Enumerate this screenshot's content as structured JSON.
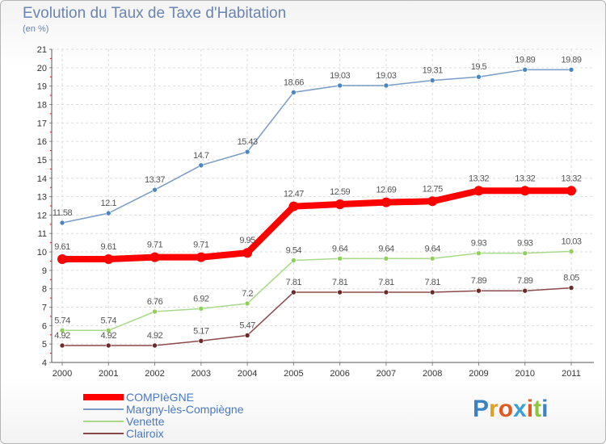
{
  "chart_data": {
    "type": "line",
    "title": "Evolution du Taux de Taxe d'Habitation",
    "subtitle": "(en %)",
    "xlabel": "",
    "ylabel": "",
    "ylim": [
      4,
      21
    ],
    "yticks": [
      4,
      5,
      6,
      7,
      8,
      9,
      10,
      11,
      12,
      13,
      14,
      15,
      16,
      17,
      18,
      19,
      20,
      21
    ],
    "categories": [
      "2000",
      "2001",
      "2002",
      "2003",
      "2004",
      "2005",
      "2006",
      "2007",
      "2008",
      "2009",
      "2010",
      "2011"
    ],
    "series": [
      {
        "name": "Margny-lès-Compiègne",
        "color": "#7a9cc6",
        "marker": "#4a86c1",
        "width": 1.5,
        "r": 3,
        "values": [
          11.58,
          12.1,
          13.37,
          14.7,
          15.43,
          18.66,
          19.03,
          19.03,
          19.31,
          19.5,
          19.89,
          19.89
        ],
        "labels": [
          "11.58",
          "12.1",
          "13.37",
          "14.7",
          "15.43",
          "18.66",
          "19.03",
          "19.03",
          "19.31",
          "19.5",
          "19.89",
          "19.89"
        ]
      },
      {
        "name": "COMPIèGNE",
        "color": "#ff0000",
        "marker": "#ff0000",
        "width": 8,
        "r": 6,
        "values": [
          9.61,
          9.61,
          9.71,
          9.71,
          9.95,
          12.47,
          12.59,
          12.69,
          12.75,
          13.32,
          13.32,
          13.32
        ],
        "labels": [
          "9.61",
          "9.61",
          "9.71",
          "9.71",
          "9.95",
          "12.47",
          "12.59",
          "12.69",
          "12.75",
          "13.32",
          "13.32",
          "13.32"
        ]
      },
      {
        "name": "Venette",
        "color": "#a9d98a",
        "marker": "#8fcf5a",
        "width": 1.5,
        "r": 3,
        "values": [
          5.74,
          5.74,
          6.76,
          6.92,
          7.2,
          9.54,
          9.64,
          9.64,
          9.64,
          9.93,
          9.93,
          10.03
        ],
        "labels": [
          "5.74",
          "5.74",
          "6.76",
          "6.92",
          "7.2",
          "9.54",
          "9.64",
          "9.64",
          "9.64",
          "9.93",
          "9.93",
          "10.03"
        ]
      },
      {
        "name": "Clairoix",
        "color": "#8a4a4a",
        "marker": "#6b2a2a",
        "width": 1.5,
        "r": 3,
        "values": [
          4.92,
          4.92,
          4.92,
          5.17,
          5.47,
          7.81,
          7.81,
          7.81,
          7.81,
          7.89,
          7.89,
          8.05
        ],
        "labels": [
          "4.92",
          "4.92",
          "4.92",
          "5.17",
          "5.47",
          "7.81",
          "7.81",
          "7.81",
          "7.81",
          "7.89",
          "7.89",
          "8.05"
        ]
      }
    ],
    "legend": {
      "placement": "bottom-left",
      "entries": [
        {
          "name": "COMPIèGNE",
          "color": "#ff0000",
          "text_color": "#4a78c4",
          "width": 8
        },
        {
          "name": "Margny-lès-Compiègne",
          "color": "#7a9cc6",
          "text_color": "#4a78c4",
          "width": 2
        },
        {
          "name": "Venette",
          "color": "#a9d98a",
          "text_color": "#4a78c4",
          "width": 2
        },
        {
          "name": "Clairoix",
          "color": "#8a4a4a",
          "text_color": "#4a78c4",
          "width": 2
        }
      ]
    }
  },
  "brand": {
    "letters": [
      {
        "ch": "P",
        "color": "#3b82c4"
      },
      {
        "ch": "r",
        "color": "#e0a020"
      },
      {
        "ch": "o",
        "color": "#e05a20"
      },
      {
        "ch": "x",
        "color": "#3aa0d8"
      },
      {
        "ch": "i",
        "color": "#e05a20"
      },
      {
        "ch": "t",
        "color": "#8cc63e"
      },
      {
        "ch": "i",
        "color": "#3b82c4"
      }
    ]
  }
}
